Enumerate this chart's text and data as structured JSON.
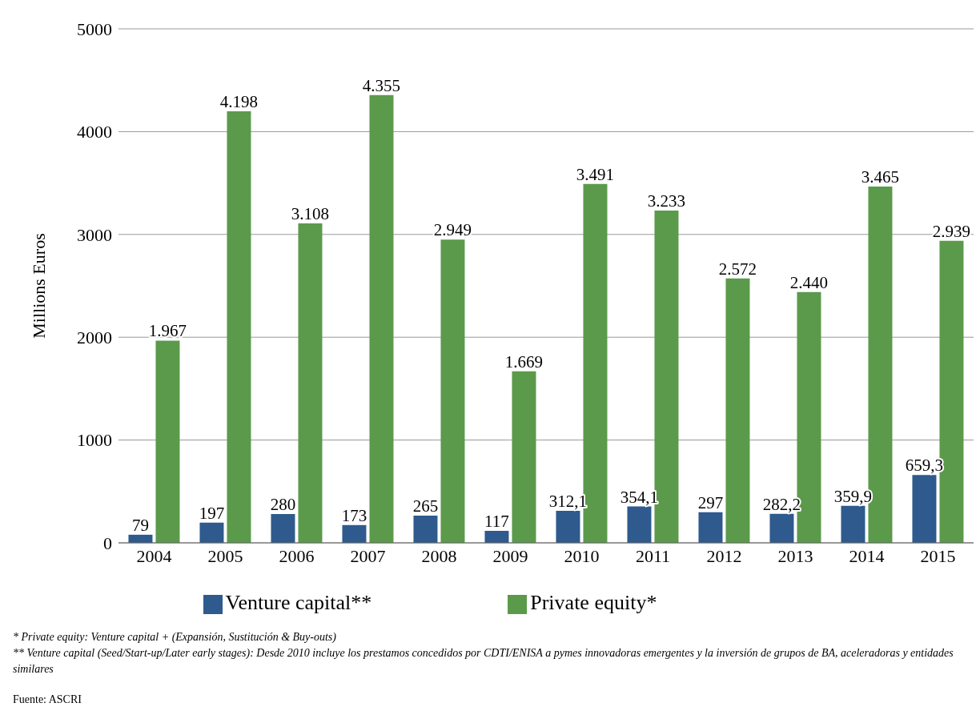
{
  "chart_data": {
    "type": "bar",
    "ylabel": "Millions Euros",
    "categories": [
      "2004",
      "2005",
      "2006",
      "2007",
      "2008",
      "2009",
      "2010",
      "2011",
      "2012",
      "2013",
      "2014",
      "2015"
    ],
    "series": [
      {
        "name": "Venture capital**",
        "color": "#2e5a8e",
        "values": [
          79,
          197,
          280,
          173,
          265,
          117,
          312.1,
          354.1,
          297,
          282.2,
          359.9,
          659.3
        ],
        "value_labels": [
          "79",
          "197",
          "280",
          "173",
          "265",
          "117",
          "312,1",
          "354,1",
          "297",
          "282,2",
          "359,9",
          "659,3"
        ]
      },
      {
        "name": "Private equity*",
        "color": "#5b9a4a",
        "values": [
          1967,
          4198,
          3108,
          4355,
          2949,
          1669,
          3491,
          3233,
          2572,
          2440,
          3465,
          2939
        ],
        "value_labels": [
          "1.967",
          "4.198",
          "3.108",
          "4.355",
          "2.949",
          "1.669",
          "3.491",
          "3.233",
          "2.572",
          "2.440",
          "3.465",
          "2.939"
        ]
      }
    ],
    "ylim": [
      0,
      5000
    ],
    "yticks": [
      0,
      1000,
      2000,
      3000,
      4000,
      5000
    ],
    "grid": "y",
    "legend": "bottom",
    "annotations": [
      "*  Private equity: Venture capital  + (Expansión, Sustitución  & Buy-outs)",
      "** Venture capital (Seed/Start-up/Later early stages): Desde 2010 incluye los prestamos concedidos por CDTI/ENISA a pymes innovadoras emergentes y la inversión de grupos de BA, aceleradoras y entidades similares",
      "Fuente: ASCRI"
    ]
  }
}
